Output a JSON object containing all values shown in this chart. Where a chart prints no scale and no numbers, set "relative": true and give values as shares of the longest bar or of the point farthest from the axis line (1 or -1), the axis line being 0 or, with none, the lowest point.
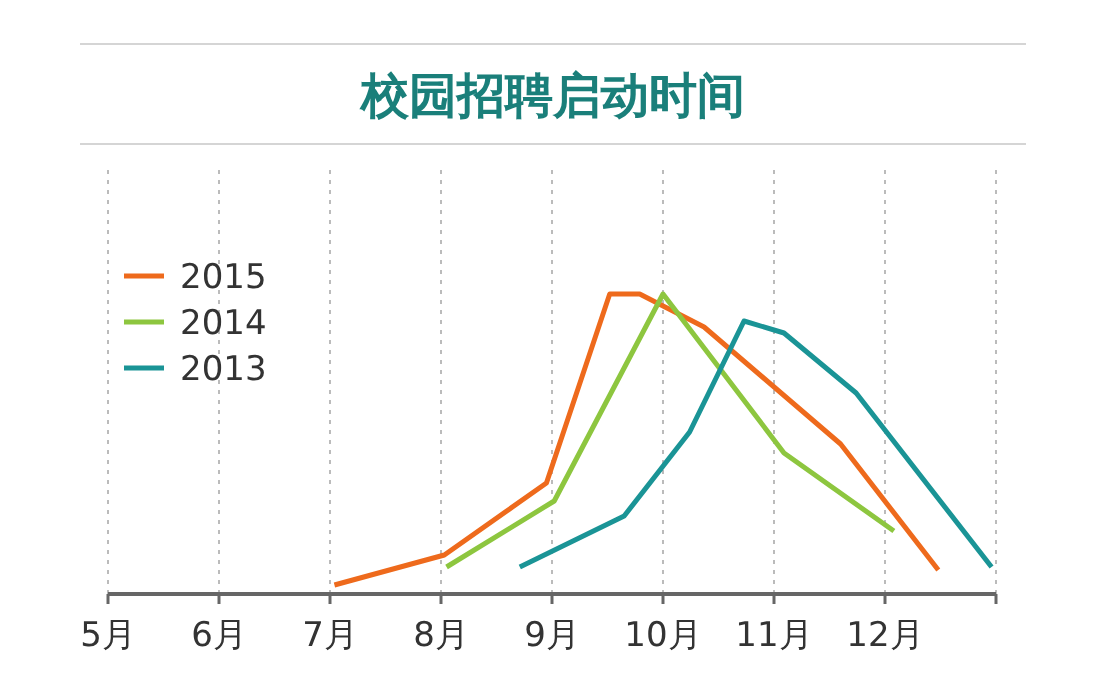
{
  "chart_data": {
    "type": "line",
    "title": "校园招聘启动时间",
    "relative": true,
    "grid": "x",
    "legend": "top left",
    "marker": "none",
    "line_style": "solid",
    "xlim": [
      5,
      13
    ],
    "xticks": [
      {
        "value": 5,
        "label": "5月"
      },
      {
        "value": 6,
        "label": "6月"
      },
      {
        "value": 7,
        "label": "7月"
      },
      {
        "value": 8,
        "label": "8月"
      },
      {
        "value": 9,
        "label": "9月"
      },
      {
        "value": 10,
        "label": "10月"
      },
      {
        "value": 11,
        "label": "11月"
      },
      {
        "value": 12,
        "label": "12月"
      },
      {
        "value": 13,
        "label": null
      }
    ],
    "series": [
      {
        "name": "2015",
        "color": "#ee6a1c",
        "x": [
          7.04,
          8.03,
          8.95,
          9.52,
          9.79,
          10.37,
          11.6,
          12.48
        ],
        "values": [
          0.03,
          0.13,
          0.37,
          1.0,
          1.0,
          0.89,
          0.5,
          0.08
        ]
      },
      {
        "name": "2014",
        "color": "#8dc63f",
        "x": [
          8.05,
          9.02,
          10.0,
          11.09,
          12.08
        ],
        "values": [
          0.09,
          0.31,
          1.0,
          0.47,
          0.21
        ]
      },
      {
        "name": "2013",
        "color": "#1a9496",
        "x": [
          8.71,
          9.65,
          10.24,
          10.73,
          11.09,
          11.74,
          12.96
        ],
        "values": [
          0.09,
          0.26,
          0.54,
          0.91,
          0.87,
          0.67,
          0.09
        ]
      }
    ]
  }
}
